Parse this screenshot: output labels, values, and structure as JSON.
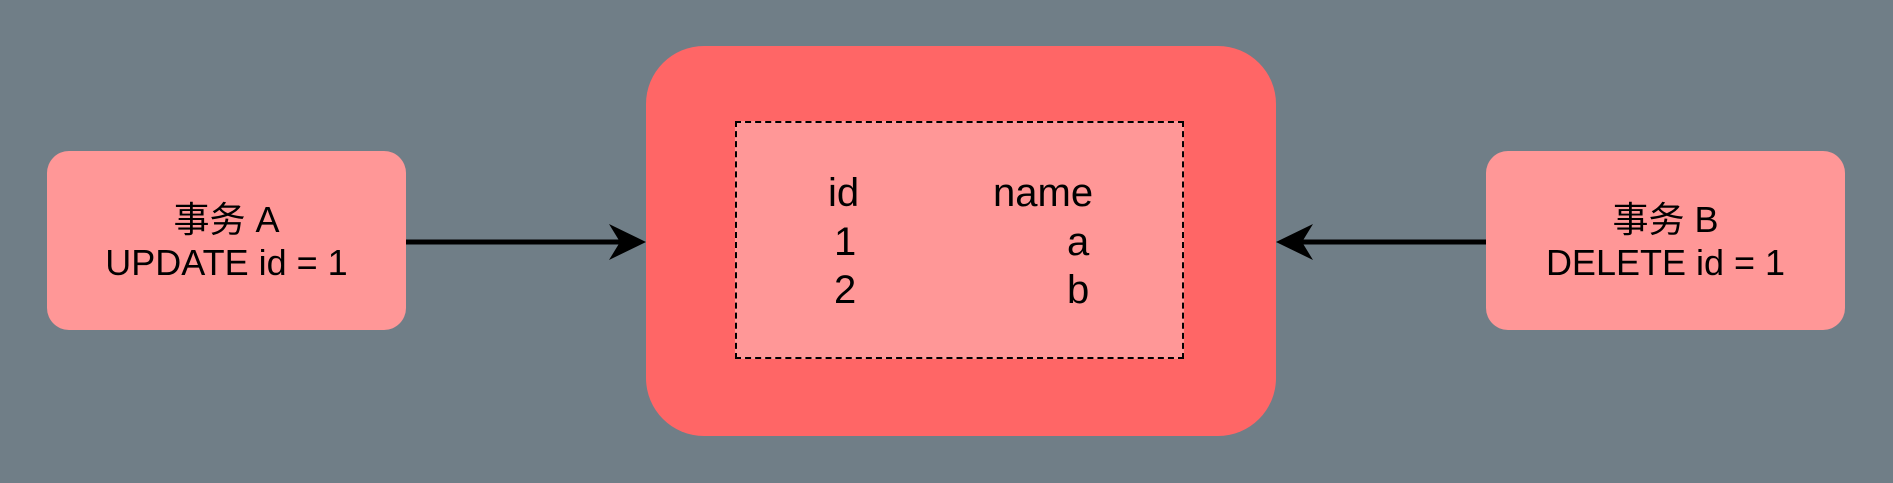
{
  "transaction_a": {
    "title": "事务 A",
    "statement": "UPDATE id = 1"
  },
  "transaction_b": {
    "title": "事务 B",
    "statement": "DELETE id = 1"
  },
  "table": {
    "headers": [
      "id",
      "name"
    ],
    "rows": [
      [
        "1",
        "a"
      ],
      [
        "2",
        "b"
      ]
    ]
  },
  "colors": {
    "background": "#707e87",
    "database_fill": "#ff6666",
    "node_fill": "#ff9797",
    "line": "#000000"
  }
}
